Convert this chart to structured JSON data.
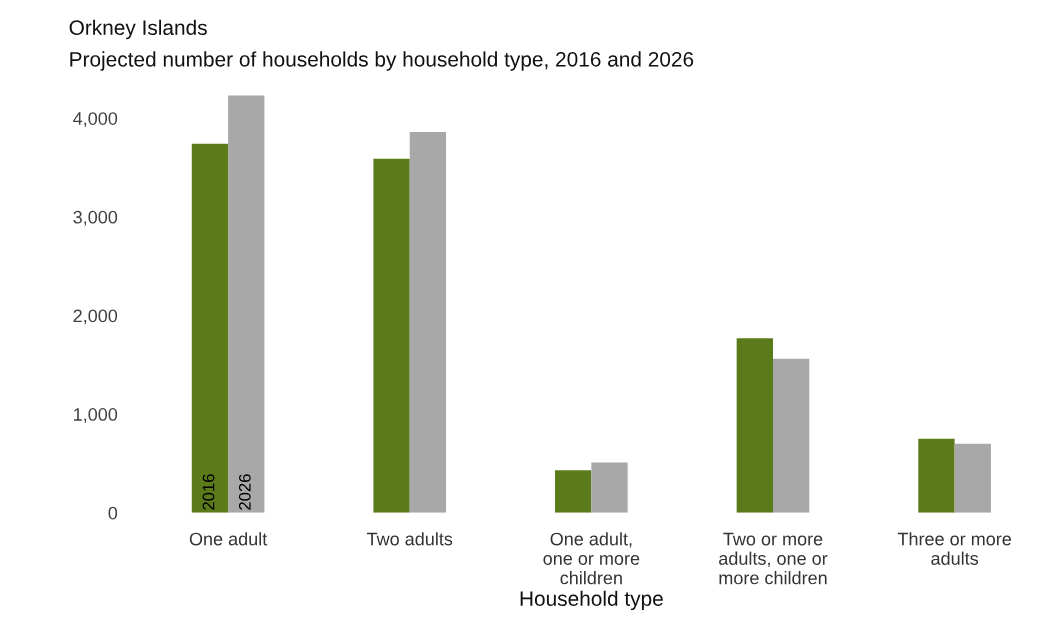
{
  "chart_data": {
    "type": "bar",
    "title": "Orkney Islands",
    "subtitle": "Projected number of households by household type, 2016 and 2026",
    "xlabel": "Household type",
    "categories": [
      "One adult",
      "Two adults",
      "One adult,\none or more\nchildren",
      "Two or more\nadults, one or\nmore children",
      "Three or more\nadults"
    ],
    "series": [
      {
        "name": "2016",
        "color": "#5b7b1a",
        "values": [
          3740,
          3590,
          430,
          1770,
          750
        ]
      },
      {
        "name": "2026",
        "color": "#a8a8a8",
        "values": [
          4230,
          3860,
          510,
          1560,
          700
        ]
      }
    ],
    "ylim": [
      0,
      4300
    ],
    "yticks": [
      {
        "value": 0,
        "label": "0"
      },
      {
        "value": 1000,
        "label": "1,000"
      },
      {
        "value": 2000,
        "label": "2,000"
      },
      {
        "value": 3000,
        "label": "3,000"
      },
      {
        "value": 4000,
        "label": "4,000"
      }
    ],
    "grid": false,
    "legend": false
  }
}
